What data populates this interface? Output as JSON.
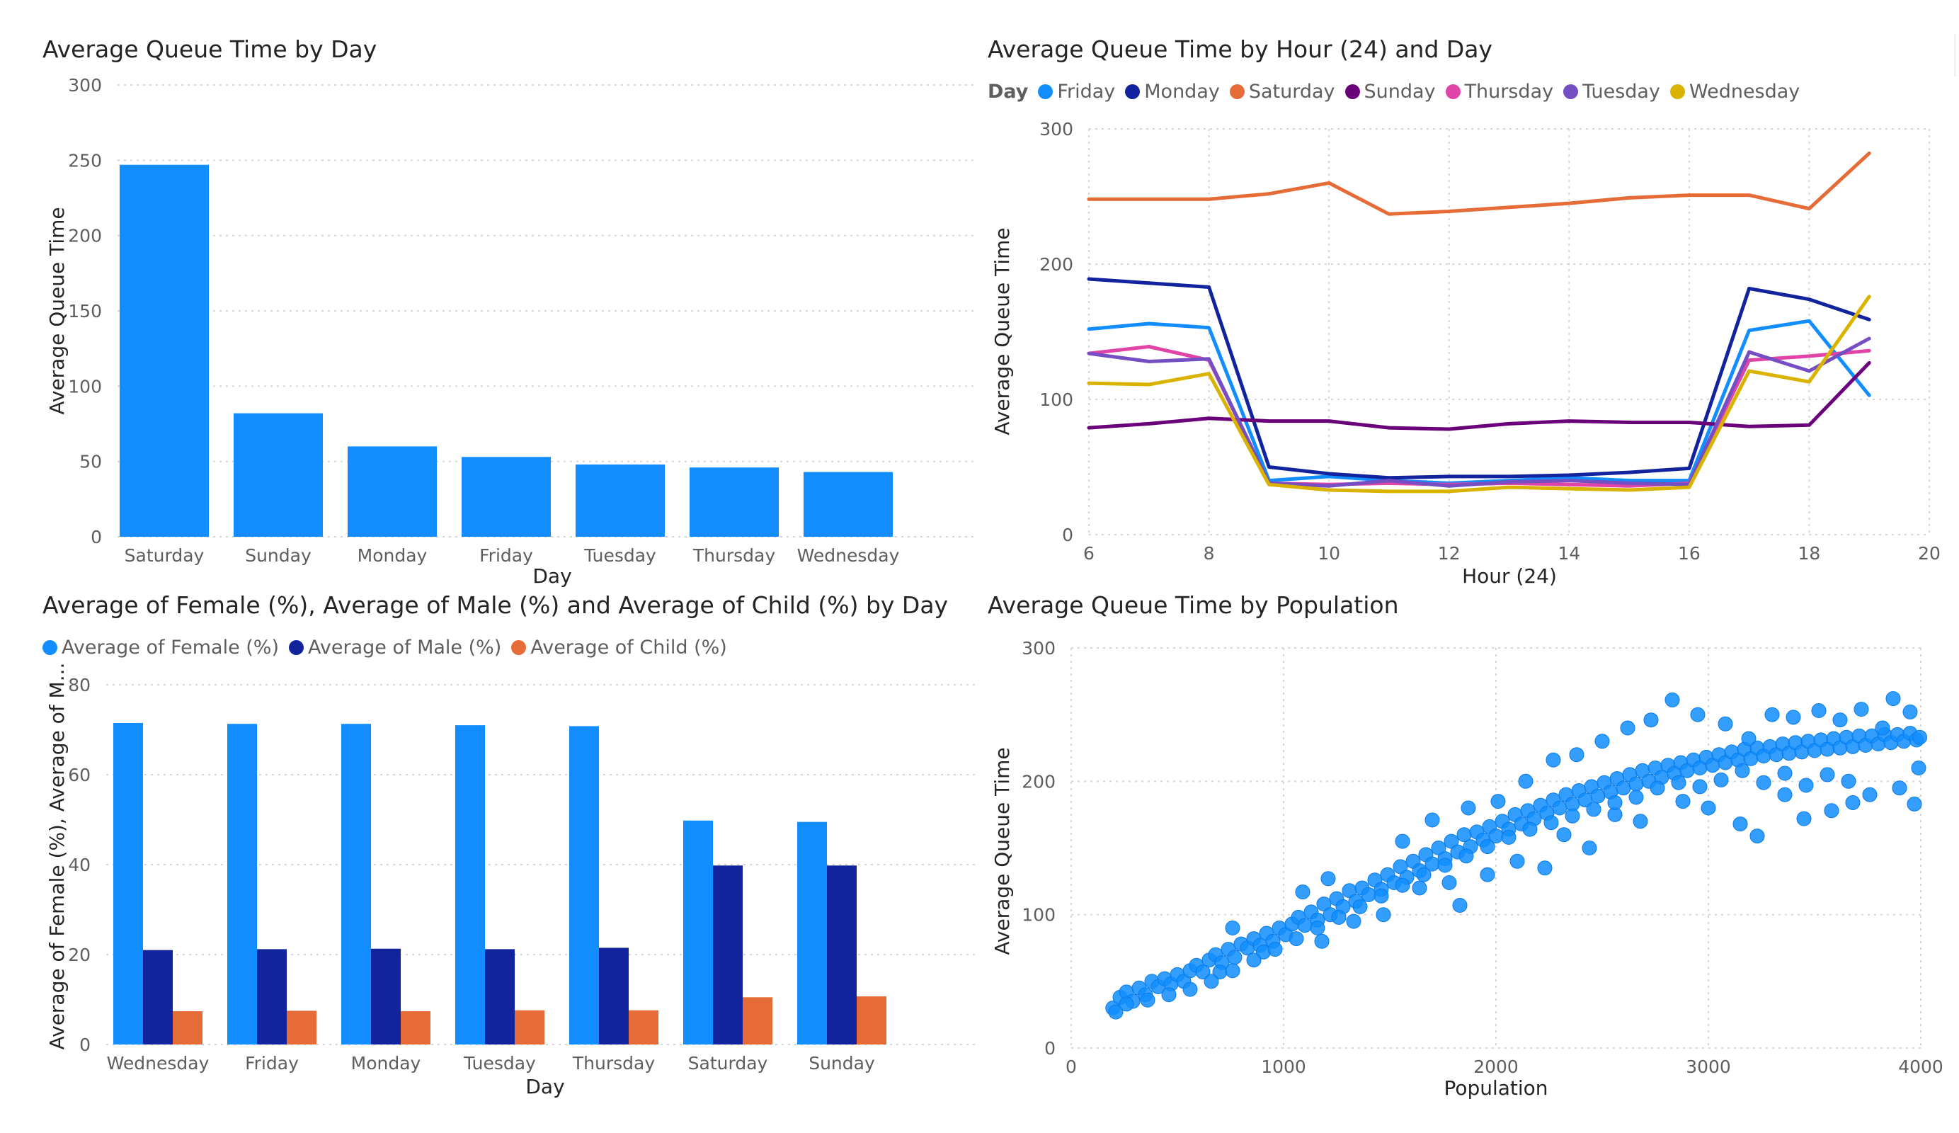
{
  "chart_data": [
    {
      "id": "c1",
      "type": "bar",
      "title": "Average Queue Time by Day",
      "xlabel": "Day",
      "ylabel": "Average Queue Time",
      "ylim": [
        0,
        300
      ],
      "yticks": [
        0,
        50,
        100,
        150,
        200,
        250,
        300
      ],
      "grid": true,
      "categories": [
        "Saturday",
        "Sunday",
        "Monday",
        "Friday",
        "Tuesday",
        "Thursday",
        "Wednesday"
      ],
      "values": [
        247,
        82,
        60,
        53,
        48,
        46,
        43
      ],
      "color": "#118DFF"
    },
    {
      "id": "c2",
      "type": "line",
      "title": "Average Queue Time by Hour (24) and Day",
      "xlabel": "Hour (24)",
      "ylabel": "Average Queue Time",
      "xlim": [
        6,
        20
      ],
      "ylim": [
        0,
        300
      ],
      "xticks": [
        6,
        8,
        10,
        12,
        14,
        16,
        18,
        20
      ],
      "yticks": [
        0,
        100,
        200,
        300
      ],
      "grid": true,
      "legend_title": "Day",
      "legend_position": "top-left",
      "x": [
        6,
        7,
        8,
        9,
        10,
        11,
        12,
        13,
        14,
        15,
        16,
        17,
        18,
        19
      ],
      "series": [
        {
          "name": "Friday",
          "color": "#118DFF",
          "values": [
            152,
            156,
            153,
            40,
            43,
            40,
            38,
            40,
            42,
            40,
            40,
            151,
            158,
            103
          ]
        },
        {
          "name": "Monday",
          "color": "#12239E",
          "values": [
            189,
            186,
            183,
            50,
            45,
            42,
            43,
            43,
            44,
            46,
            49,
            182,
            174,
            159
          ]
        },
        {
          "name": "Saturday",
          "color": "#E66C37",
          "values": [
            248,
            248,
            248,
            252,
            260,
            237,
            239,
            242,
            245,
            249,
            251,
            251,
            241,
            282
          ]
        },
        {
          "name": "Sunday",
          "color": "#6B007B",
          "values": [
            79,
            82,
            86,
            84,
            84,
            79,
            78,
            82,
            84,
            83,
            83,
            80,
            81,
            127
          ]
        },
        {
          "name": "Thursday",
          "color": "#E044A7",
          "values": [
            134,
            139,
            129,
            38,
            37,
            38,
            37,
            38,
            37,
            36,
            38,
            129,
            132,
            136
          ]
        },
        {
          "name": "Tuesday",
          "color": "#744EC2",
          "values": [
            134,
            128,
            130,
            38,
            36,
            40,
            36,
            39,
            40,
            38,
            37,
            135,
            121,
            145
          ]
        },
        {
          "name": "Wednesday",
          "color": "#D9B300",
          "values": [
            112,
            111,
            119,
            37,
            33,
            32,
            32,
            35,
            34,
            33,
            35,
            121,
            113,
            176
          ]
        }
      ]
    },
    {
      "id": "c3",
      "type": "bar",
      "title": "Average of Female (%), Average of Male (%) and Average of Child (%) by Day",
      "xlabel": "Day",
      "ylabel": "Average of Female (%), Average of M...",
      "ylim": [
        0,
        80
      ],
      "yticks": [
        0,
        20,
        40,
        60,
        80
      ],
      "grid": true,
      "legend_position": "top-left",
      "categories": [
        "Wednesday",
        "Friday",
        "Monday",
        "Tuesday",
        "Thursday",
        "Saturday",
        "Sunday"
      ],
      "series": [
        {
          "name": "Average of Female (%)",
          "color": "#118DFF",
          "values": [
            71.5,
            71.3,
            71.3,
            71.0,
            70.8,
            49.8,
            49.5
          ]
        },
        {
          "name": "Average of Male (%)",
          "color": "#12239E",
          "values": [
            21.0,
            21.2,
            21.3,
            21.2,
            21.5,
            39.8,
            39.8
          ]
        },
        {
          "name": "Average of Child (%)",
          "color": "#E66C37",
          "values": [
            7.4,
            7.5,
            7.4,
            7.6,
            7.6,
            10.5,
            10.7
          ]
        }
      ]
    },
    {
      "id": "c4",
      "type": "scatter",
      "title": "Average Queue Time by Population",
      "xlabel": "Population",
      "ylabel": "Average Queue Time",
      "xlim": [
        0,
        4000
      ],
      "ylim": [
        0,
        300
      ],
      "xticks": [
        0,
        1000,
        2000,
        3000,
        4000
      ],
      "yticks": [
        0,
        100,
        200,
        300
      ],
      "grid": true,
      "color": "#118DFF",
      "points": [
        [
          196,
          30
        ],
        [
          210,
          27
        ],
        [
          230,
          38
        ],
        [
          260,
          42
        ],
        [
          290,
          35
        ],
        [
          320,
          45
        ],
        [
          350,
          40
        ],
        [
          380,
          50
        ],
        [
          410,
          46
        ],
        [
          440,
          52
        ],
        [
          470,
          48
        ],
        [
          500,
          55
        ],
        [
          530,
          50
        ],
        [
          560,
          58
        ],
        [
          590,
          62
        ],
        [
          620,
          57
        ],
        [
          650,
          66
        ],
        [
          680,
          70
        ],
        [
          710,
          64
        ],
        [
          740,
          74
        ],
        [
          770,
          68
        ],
        [
          800,
          78
        ],
        [
          830,
          75
        ],
        [
          860,
          82
        ],
        [
          890,
          77
        ],
        [
          920,
          86
        ],
        [
          950,
          80
        ],
        [
          980,
          90
        ],
        [
          1010,
          85
        ],
        [
          1040,
          93
        ],
        [
          1070,
          98
        ],
        [
          1100,
          92
        ],
        [
          1130,
          102
        ],
        [
          1160,
          96
        ],
        [
          1190,
          108
        ],
        [
          1220,
          100
        ],
        [
          1250,
          112
        ],
        [
          1280,
          106
        ],
        [
          1310,
          118
        ],
        [
          1340,
          110
        ],
        [
          1370,
          120
        ],
        [
          1400,
          115
        ],
        [
          1430,
          126
        ],
        [
          1460,
          119
        ],
        [
          1490,
          130
        ],
        [
          1520,
          124
        ],
        [
          1550,
          136
        ],
        [
          1580,
          128
        ],
        [
          1610,
          140
        ],
        [
          1640,
          133
        ],
        [
          1670,
          145
        ],
        [
          1700,
          138
        ],
        [
          1730,
          150
        ],
        [
          1760,
          142
        ],
        [
          1790,
          155
        ],
        [
          1820,
          147
        ],
        [
          1850,
          160
        ],
        [
          1880,
          151
        ],
        [
          1910,
          162
        ],
        [
          1940,
          156
        ],
        [
          1970,
          166
        ],
        [
          2000,
          159
        ],
        [
          2030,
          170
        ],
        [
          2060,
          164
        ],
        [
          2090,
          175
        ],
        [
          2120,
          168
        ],
        [
          2150,
          178
        ],
        [
          2180,
          172
        ],
        [
          2210,
          182
        ],
        [
          2240,
          176
        ],
        [
          2270,
          186
        ],
        [
          2300,
          180
        ],
        [
          2330,
          190
        ],
        [
          2360,
          183
        ],
        [
          2390,
          193
        ],
        [
          2420,
          186
        ],
        [
          2450,
          196
        ],
        [
          2480,
          189
        ],
        [
          2510,
          199
        ],
        [
          2540,
          192
        ],
        [
          2570,
          202
        ],
        [
          2600,
          195
        ],
        [
          2630,
          205
        ],
        [
          2660,
          198
        ],
        [
          2690,
          208
        ],
        [
          2720,
          200
        ],
        [
          2750,
          210
        ],
        [
          2780,
          203
        ],
        [
          2810,
          212
        ],
        [
          2840,
          206
        ],
        [
          2870,
          214
        ],
        [
          2900,
          208
        ],
        [
          2930,
          216
        ],
        [
          2960,
          210
        ],
        [
          2990,
          218
        ],
        [
          3020,
          212
        ],
        [
          3050,
          220
        ],
        [
          3080,
          214
        ],
        [
          3110,
          222
        ],
        [
          3140,
          216
        ],
        [
          3170,
          224
        ],
        [
          3200,
          217
        ],
        [
          3230,
          225
        ],
        [
          3260,
          219
        ],
        [
          3290,
          226
        ],
        [
          3320,
          220
        ],
        [
          3350,
          228
        ],
        [
          3380,
          221
        ],
        [
          3410,
          229
        ],
        [
          3440,
          222
        ],
        [
          3470,
          230
        ],
        [
          3500,
          223
        ],
        [
          3530,
          231
        ],
        [
          3560,
          224
        ],
        [
          3590,
          232
        ],
        [
          3620,
          225
        ],
        [
          3650,
          233
        ],
        [
          3680,
          226
        ],
        [
          3710,
          234
        ],
        [
          3740,
          227
        ],
        [
          3770,
          234
        ],
        [
          3800,
          228
        ],
        [
          3830,
          235
        ],
        [
          3860,
          229
        ],
        [
          3890,
          235
        ],
        [
          3920,
          230
        ],
        [
          3950,
          236
        ],
        [
          3980,
          231
        ],
        [
          3995,
          233
        ],
        [
          700,
          57
        ],
        [
          760,
          90
        ],
        [
          905,
          72
        ],
        [
          1090,
          117
        ],
        [
          1180,
          80
        ],
        [
          1210,
          127
        ],
        [
          1330,
          95
        ],
        [
          1470,
          100
        ],
        [
          1560,
          155
        ],
        [
          1640,
          120
        ],
        [
          1700,
          171
        ],
        [
          1780,
          124
        ],
        [
          1830,
          107
        ],
        [
          1870,
          180
        ],
        [
          1960,
          130
        ],
        [
          2010,
          185
        ],
        [
          2100,
          140
        ],
        [
          2140,
          200
        ],
        [
          2230,
          135
        ],
        [
          2270,
          216
        ],
        [
          2320,
          160
        ],
        [
          2380,
          220
        ],
        [
          2440,
          150
        ],
        [
          2500,
          230
        ],
        [
          2560,
          175
        ],
        [
          2620,
          240
        ],
        [
          2680,
          170
        ],
        [
          2730,
          246
        ],
        [
          2830,
          261
        ],
        [
          2880,
          185
        ],
        [
          2950,
          250
        ],
        [
          3000,
          180
        ],
        [
          3080,
          243
        ],
        [
          3150,
          168
        ],
        [
          3190,
          232
        ],
        [
          3230,
          159
        ],
        [
          3300,
          250
        ],
        [
          3360,
          190
        ],
        [
          3400,
          248
        ],
        [
          3450,
          172
        ],
        [
          3520,
          253
        ],
        [
          3580,
          178
        ],
        [
          3620,
          246
        ],
        [
          3680,
          184
        ],
        [
          3720,
          254
        ],
        [
          3760,
          190
        ],
        [
          3820,
          240
        ],
        [
          3870,
          262
        ],
        [
          3900,
          195
        ],
        [
          3950,
          252
        ],
        [
          3970,
          183
        ],
        [
          3990,
          210
        ],
        [
          3660,
          200
        ],
        [
          3560,
          205
        ],
        [
          3460,
          197
        ],
        [
          3360,
          206
        ],
        [
          3260,
          199
        ],
        [
          3160,
          208
        ],
        [
          3060,
          201
        ],
        [
          2960,
          196
        ],
        [
          2860,
          199
        ],
        [
          2760,
          195
        ],
        [
          2660,
          188
        ],
        [
          2560,
          184
        ],
        [
          2460,
          179
        ],
        [
          2360,
          174
        ],
        [
          2260,
          169
        ],
        [
          2160,
          164
        ],
        [
          2060,
          158
        ],
        [
          1960,
          151
        ],
        [
          1860,
          144
        ],
        [
          1760,
          137
        ],
        [
          1660,
          130
        ],
        [
          1560,
          122
        ],
        [
          1460,
          114
        ],
        [
          1360,
          106
        ],
        [
          1260,
          98
        ],
        [
          1160,
          90
        ],
        [
          1060,
          82
        ],
        [
          960,
          74
        ],
        [
          860,
          66
        ],
        [
          760,
          58
        ],
        [
          660,
          50
        ],
        [
          560,
          44
        ],
        [
          460,
          40
        ],
        [
          360,
          36
        ],
        [
          260,
          33
        ]
      ]
    }
  ]
}
